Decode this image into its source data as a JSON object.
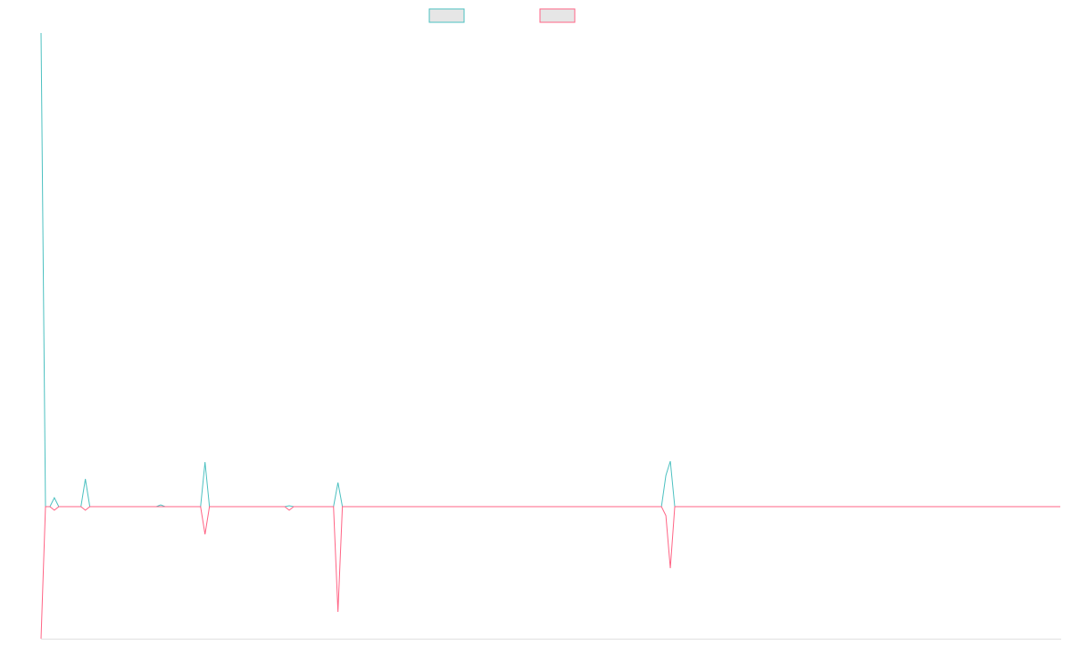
{
  "chart_data": {
    "type": "line",
    "x": [
      0,
      1,
      2,
      3,
      4,
      9,
      10,
      11,
      26,
      27,
      28,
      36,
      37,
      38,
      55,
      56,
      57,
      66,
      67,
      68,
      140,
      141,
      142,
      143,
      230
    ],
    "series": [
      {
        "color": "#4bc0c0",
        "values": [
          531,
          0,
          0,
          10,
          0,
          0,
          31,
          0,
          0,
          2,
          0,
          0,
          50,
          0,
          0,
          1,
          0,
          0,
          27,
          0,
          0,
          35,
          51,
          0,
          0
        ]
      },
      {
        "color": "#ff6384",
        "values": [
          -148,
          0,
          0,
          -4,
          0,
          0,
          -4,
          0,
          0,
          0,
          0,
          0,
          -31,
          0,
          0,
          -4,
          0,
          0,
          -118,
          0,
          0,
          -10,
          -69,
          0,
          0
        ]
      }
    ],
    "xlim": [
      0,
      230
    ],
    "ylim": [
      -148,
      531
    ],
    "legend": "top"
  }
}
